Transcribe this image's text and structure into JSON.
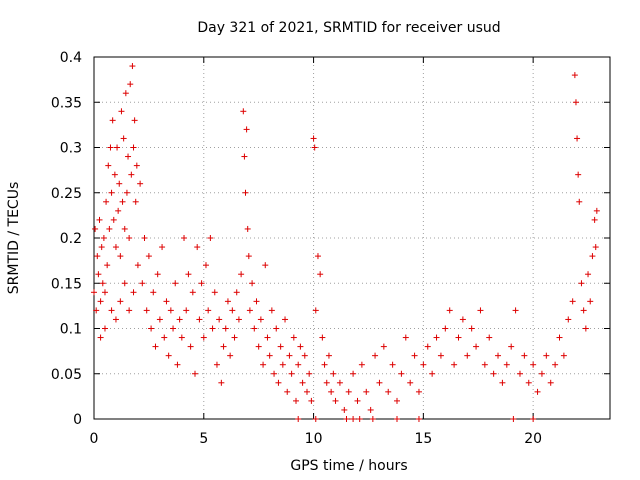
{
  "chart_data": {
    "type": "scatter",
    "title": "Day 321 of 2021, SRMTID for receiver usud",
    "xlabel": "GPS time / hours",
    "ylabel": "SRMTID / TECUs",
    "xlim": [
      0,
      23.5
    ],
    "ylim": [
      0,
      0.4
    ],
    "x_ticks": [
      0,
      5,
      10,
      15,
      20
    ],
    "x_tick_labels": [
      "0",
      "5",
      "10",
      "15",
      "20"
    ],
    "y_ticks": [
      0,
      0.05,
      0.1,
      0.15,
      0.2,
      0.25,
      0.3,
      0.35,
      0.4
    ],
    "y_tick_labels": [
      "0",
      "0.05",
      "0.1",
      "0.15",
      "0.2",
      "0.25",
      "0.3",
      "0.35",
      "0.4"
    ],
    "grid": true,
    "marker": "+",
    "color": "#dd0000",
    "series": [
      {
        "name": "SRMTID",
        "points": [
          [
            0.0,
            0.14
          ],
          [
            0.05,
            0.21
          ],
          [
            0.1,
            0.12
          ],
          [
            0.15,
            0.18
          ],
          [
            0.2,
            0.16
          ],
          [
            0.25,
            0.22
          ],
          [
            0.3,
            0.13
          ],
          [
            0.35,
            0.19
          ],
          [
            0.4,
            0.15
          ],
          [
            0.45,
            0.2
          ],
          [
            0.5,
            0.14
          ],
          [
            0.55,
            0.24
          ],
          [
            0.6,
            0.17
          ],
          [
            0.65,
            0.28
          ],
          [
            0.7,
            0.21
          ],
          [
            0.75,
            0.3
          ],
          [
            0.8,
            0.25
          ],
          [
            0.85,
            0.33
          ],
          [
            0.9,
            0.22
          ],
          [
            0.95,
            0.27
          ],
          [
            1.0,
            0.19
          ],
          [
            1.05,
            0.3
          ],
          [
            1.1,
            0.23
          ],
          [
            1.15,
            0.26
          ],
          [
            1.2,
            0.18
          ],
          [
            1.25,
            0.34
          ],
          [
            1.3,
            0.24
          ],
          [
            1.35,
            0.31
          ],
          [
            1.4,
            0.21
          ],
          [
            1.45,
            0.36
          ],
          [
            1.5,
            0.25
          ],
          [
            1.55,
            0.29
          ],
          [
            1.6,
            0.2
          ],
          [
            1.65,
            0.37
          ],
          [
            1.7,
            0.27
          ],
          [
            1.75,
            0.39
          ],
          [
            1.8,
            0.3
          ],
          [
            1.85,
            0.33
          ],
          [
            1.9,
            0.24
          ],
          [
            1.95,
            0.28
          ],
          [
            0.3,
            0.09
          ],
          [
            0.5,
            0.1
          ],
          [
            0.8,
            0.12
          ],
          [
            1.0,
            0.11
          ],
          [
            1.2,
            0.13
          ],
          [
            1.4,
            0.15
          ],
          [
            1.6,
            0.12
          ],
          [
            1.8,
            0.14
          ],
          [
            2.0,
            0.17
          ],
          [
            2.1,
            0.26
          ],
          [
            2.2,
            0.15
          ],
          [
            2.3,
            0.2
          ],
          [
            2.4,
            0.12
          ],
          [
            2.5,
            0.18
          ],
          [
            2.6,
            0.1
          ],
          [
            2.7,
            0.14
          ],
          [
            2.8,
            0.08
          ],
          [
            2.9,
            0.16
          ],
          [
            3.0,
            0.11
          ],
          [
            3.1,
            0.19
          ],
          [
            3.2,
            0.09
          ],
          [
            3.3,
            0.13
          ],
          [
            3.4,
            0.07
          ],
          [
            3.5,
            0.12
          ],
          [
            3.6,
            0.1
          ],
          [
            3.7,
            0.15
          ],
          [
            3.8,
            0.06
          ],
          [
            3.9,
            0.11
          ],
          [
            4.0,
            0.09
          ],
          [
            4.1,
            0.2
          ],
          [
            4.2,
            0.12
          ],
          [
            4.3,
            0.16
          ],
          [
            4.4,
            0.08
          ],
          [
            4.5,
            0.14
          ],
          [
            4.6,
            0.05
          ],
          [
            4.7,
            0.19
          ],
          [
            4.8,
            0.11
          ],
          [
            4.9,
            0.15
          ],
          [
            5.0,
            0.09
          ],
          [
            5.1,
            0.17
          ],
          [
            5.2,
            0.12
          ],
          [
            5.3,
            0.2
          ],
          [
            5.4,
            0.1
          ],
          [
            5.5,
            0.14
          ],
          [
            5.6,
            0.06
          ],
          [
            5.7,
            0.11
          ],
          [
            5.8,
            0.04
          ],
          [
            5.9,
            0.08
          ],
          [
            6.0,
            0.1
          ],
          [
            6.1,
            0.13
          ],
          [
            6.2,
            0.07
          ],
          [
            6.3,
            0.12
          ],
          [
            6.4,
            0.09
          ],
          [
            6.5,
            0.14
          ],
          [
            6.6,
            0.11
          ],
          [
            6.7,
            0.16
          ],
          [
            6.8,
            0.34
          ],
          [
            6.85,
            0.29
          ],
          [
            6.9,
            0.25
          ],
          [
            6.95,
            0.32
          ],
          [
            7.0,
            0.21
          ],
          [
            7.05,
            0.18
          ],
          [
            7.1,
            0.12
          ],
          [
            7.2,
            0.15
          ],
          [
            7.3,
            0.1
          ],
          [
            7.4,
            0.13
          ],
          [
            7.5,
            0.08
          ],
          [
            7.6,
            0.11
          ],
          [
            7.7,
            0.06
          ],
          [
            7.8,
            0.17
          ],
          [
            7.9,
            0.09
          ],
          [
            8.0,
            0.07
          ],
          [
            8.1,
            0.12
          ],
          [
            8.2,
            0.05
          ],
          [
            8.3,
            0.1
          ],
          [
            8.4,
            0.04
          ],
          [
            8.5,
            0.08
          ],
          [
            8.6,
            0.06
          ],
          [
            8.7,
            0.11
          ],
          [
            8.8,
            0.03
          ],
          [
            8.9,
            0.07
          ],
          [
            9.0,
            0.05
          ],
          [
            9.1,
            0.09
          ],
          [
            9.2,
            0.02
          ],
          [
            9.3,
            0.06
          ],
          [
            9.4,
            0.08
          ],
          [
            9.5,
            0.04
          ],
          [
            9.6,
            0.07
          ],
          [
            9.7,
            0.03
          ],
          [
            9.8,
            0.05
          ],
          [
            9.9,
            0.02
          ],
          [
            10.0,
            0.31
          ],
          [
            10.05,
            0.3
          ],
          [
            10.1,
            0.12
          ],
          [
            10.2,
            0.18
          ],
          [
            10.3,
            0.16
          ],
          [
            10.4,
            0.09
          ],
          [
            10.5,
            0.06
          ],
          [
            10.6,
            0.04
          ],
          [
            10.7,
            0.07
          ],
          [
            10.8,
            0.03
          ],
          [
            10.9,
            0.05
          ],
          [
            11.0,
            0.02
          ],
          [
            11.2,
            0.04
          ],
          [
            11.4,
            0.01
          ],
          [
            11.6,
            0.03
          ],
          [
            11.8,
            0.05
          ],
          [
            12.0,
            0.02
          ],
          [
            12.2,
            0.06
          ],
          [
            12.4,
            0.03
          ],
          [
            12.6,
            0.01
          ],
          [
            12.8,
            0.07
          ],
          [
            13.0,
            0.04
          ],
          [
            13.2,
            0.08
          ],
          [
            13.4,
            0.03
          ],
          [
            13.6,
            0.06
          ],
          [
            13.8,
            0.02
          ],
          [
            14.0,
            0.05
          ],
          [
            14.2,
            0.09
          ],
          [
            14.4,
            0.04
          ],
          [
            14.6,
            0.07
          ],
          [
            14.8,
            0.03
          ],
          [
            15.0,
            0.06
          ],
          [
            15.2,
            0.08
          ],
          [
            15.4,
            0.05
          ],
          [
            15.6,
            0.09
          ],
          [
            15.8,
            0.07
          ],
          [
            16.0,
            0.1
          ],
          [
            16.2,
            0.12
          ],
          [
            16.4,
            0.06
          ],
          [
            16.6,
            0.09
          ],
          [
            16.8,
            0.11
          ],
          [
            17.0,
            0.07
          ],
          [
            17.2,
            0.1
          ],
          [
            17.4,
            0.08
          ],
          [
            17.6,
            0.12
          ],
          [
            17.8,
            0.06
          ],
          [
            18.0,
            0.09
          ],
          [
            18.2,
            0.05
          ],
          [
            18.4,
            0.07
          ],
          [
            18.6,
            0.04
          ],
          [
            18.8,
            0.06
          ],
          [
            19.0,
            0.08
          ],
          [
            19.2,
            0.12
          ],
          [
            19.4,
            0.05
          ],
          [
            19.6,
            0.07
          ],
          [
            19.8,
            0.04
          ],
          [
            20.0,
            0.06
          ],
          [
            20.2,
            0.03
          ],
          [
            20.4,
            0.05
          ],
          [
            20.6,
            0.07
          ],
          [
            20.8,
            0.04
          ],
          [
            21.0,
            0.06
          ],
          [
            21.2,
            0.09
          ],
          [
            21.4,
            0.07
          ],
          [
            21.6,
            0.11
          ],
          [
            21.8,
            0.13
          ],
          [
            21.9,
            0.38
          ],
          [
            21.95,
            0.35
          ],
          [
            22.0,
            0.31
          ],
          [
            22.05,
            0.27
          ],
          [
            22.1,
            0.24
          ],
          [
            22.2,
            0.15
          ],
          [
            22.3,
            0.12
          ],
          [
            22.4,
            0.1
          ],
          [
            22.5,
            0.16
          ],
          [
            22.6,
            0.13
          ],
          [
            22.7,
            0.18
          ],
          [
            22.8,
            0.22
          ],
          [
            22.85,
            0.19
          ],
          [
            22.9,
            0.23
          ],
          [
            11.5,
            0.0
          ],
          [
            11.8,
            0.0
          ],
          [
            12.1,
            0.0
          ],
          [
            12.7,
            0.0
          ],
          [
            9.3,
            0.0
          ],
          [
            10.1,
            0.0
          ],
          [
            13.8,
            0.0
          ],
          [
            14.8,
            0.0
          ],
          [
            19.1,
            0.0
          ],
          [
            20.0,
            0.0
          ]
        ]
      }
    ]
  }
}
